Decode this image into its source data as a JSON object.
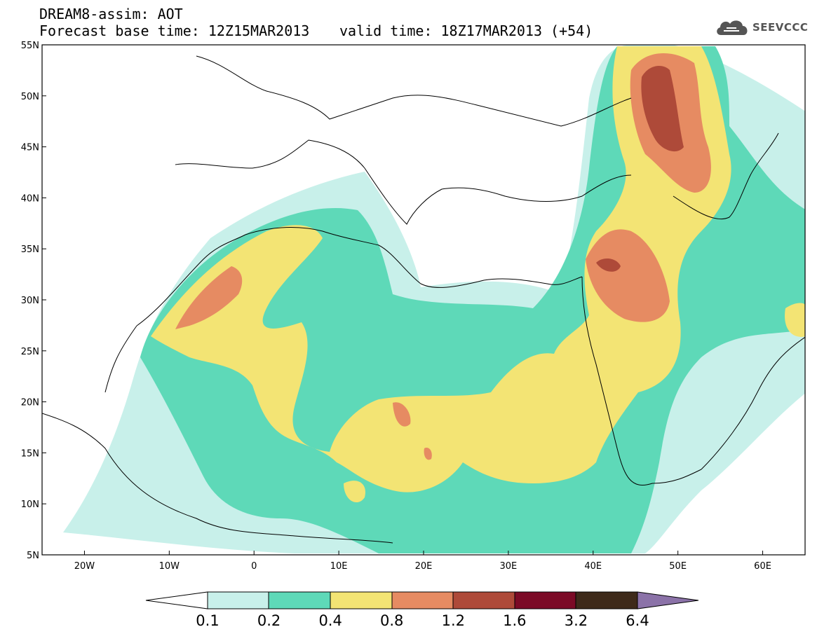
{
  "header": {
    "line1": "DREAM8-assim: AOT",
    "base_time": "Forecast base time: 12Z15MAR2013",
    "valid_time": "valid time: 18Z17MAR2013 (+54)"
  },
  "logo": {
    "text": "SEEVCCC",
    "icon": "cloud-icon"
  },
  "map": {
    "lon_range": [
      -25,
      65
    ],
    "lat_range": [
      5,
      55
    ],
    "x_ticks": [
      "20W",
      "10W",
      "0",
      "10E",
      "20E",
      "30E",
      "40E",
      "50E",
      "60E"
    ],
    "y_ticks": [
      "5N",
      "10N",
      "15N",
      "20N",
      "25N",
      "30N",
      "35N",
      "40N",
      "45N",
      "50N",
      "55N"
    ]
  },
  "colorbar": {
    "labels": [
      "0.1",
      "0.2",
      "0.4",
      "0.8",
      "1.2",
      "1.6",
      "3.2",
      "6.4"
    ],
    "colors": [
      "#ffffff",
      "#c8f0ea",
      "#5ed9b8",
      "#f3e474",
      "#e68b62",
      "#ae4a39",
      "#7b0a26",
      "#3e2a1a",
      "#8b72a8"
    ]
  },
  "palette": {
    "c1": "#c8f0ea",
    "c2": "#5ed9b8",
    "c3": "#f3e474",
    "c4": "#e68b62",
    "c5": "#ae4a39"
  }
}
